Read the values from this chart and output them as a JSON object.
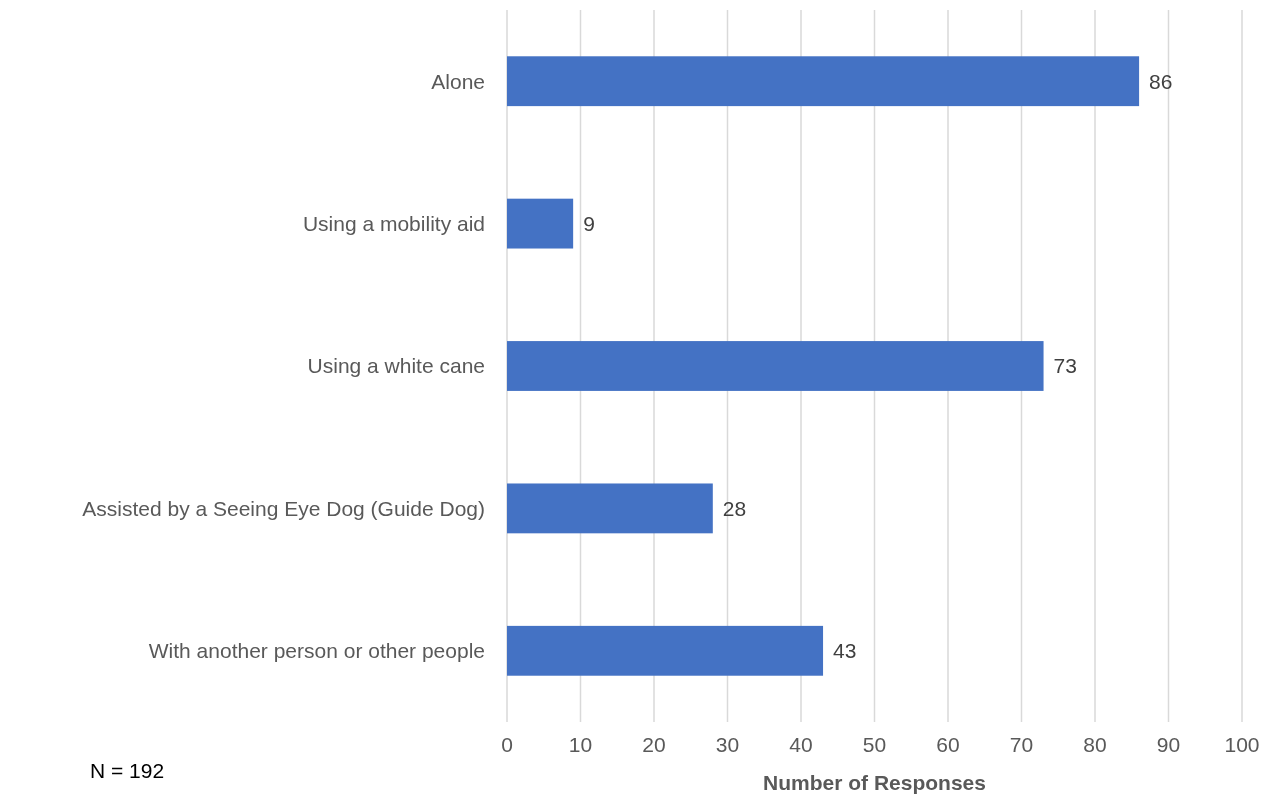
{
  "chart_data": {
    "type": "bar",
    "orientation": "horizontal",
    "xlabel": "Number of Responses",
    "categories": [
      "Alone",
      "Using a mobility aid",
      "Using a white cane",
      "Assisted by a Seeing Eye Dog (Guide Dog)",
      "With another person or other people"
    ],
    "values": [
      86,
      9,
      73,
      28,
      43
    ],
    "color": "#4472c4",
    "data_labels": true,
    "xlim": [
      0,
      100
    ],
    "xticks": [
      0,
      10,
      20,
      30,
      40,
      50,
      60,
      70,
      80,
      90,
      100
    ],
    "grid": "x",
    "annotations": [
      "N = 192"
    ]
  }
}
